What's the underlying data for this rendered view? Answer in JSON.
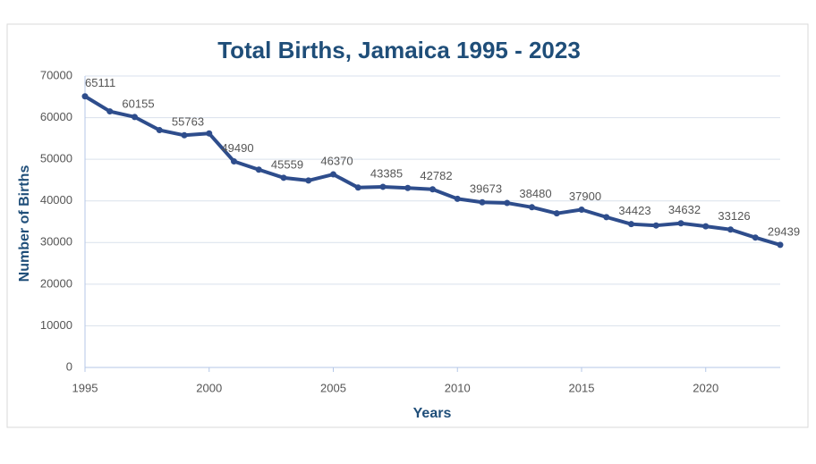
{
  "chart_data": {
    "type": "line",
    "title": "Total Births, Jamaica 1995 - 2023",
    "x_label": "Years",
    "y_label": "Number of Births",
    "x": [
      1995,
      1996,
      1997,
      1998,
      1999,
      2000,
      2001,
      2002,
      2003,
      2004,
      2005,
      2006,
      2007,
      2008,
      2009,
      2010,
      2011,
      2012,
      2013,
      2014,
      2015,
      2016,
      2017,
      2018,
      2019,
      2020,
      2021,
      2022,
      2023
    ],
    "series": [
      {
        "name": "Total Births",
        "color": "#2e4d8c",
        "values": [
          65111,
          61500,
          60155,
          57000,
          55763,
          56200,
          49490,
          47500,
          45559,
          44900,
          46370,
          43200,
          43385,
          43100,
          42782,
          40500,
          39673,
          39500,
          38480,
          37000,
          37900,
          36100,
          34423,
          34100,
          34632,
          33900,
          33126,
          31200,
          29439
        ],
        "value_labels": [
          "65111",
          null,
          "60155",
          null,
          "55763",
          null,
          "49490",
          null,
          "45559",
          null,
          "46370",
          null,
          "43385",
          null,
          "42782",
          null,
          "39673",
          null,
          "38480",
          null,
          "37900",
          null,
          "34423",
          null,
          "34632",
          null,
          "33126",
          null,
          "29439"
        ]
      }
    ],
    "xlim": [
      1995,
      2023
    ],
    "xticks": [
      1995,
      2000,
      2005,
      2010,
      2015,
      2020
    ],
    "ylim": [
      0,
      70000
    ],
    "yticks": [
      0,
      10000,
      20000,
      30000,
      40000,
      50000,
      60000,
      70000
    ],
    "grid": true
  }
}
